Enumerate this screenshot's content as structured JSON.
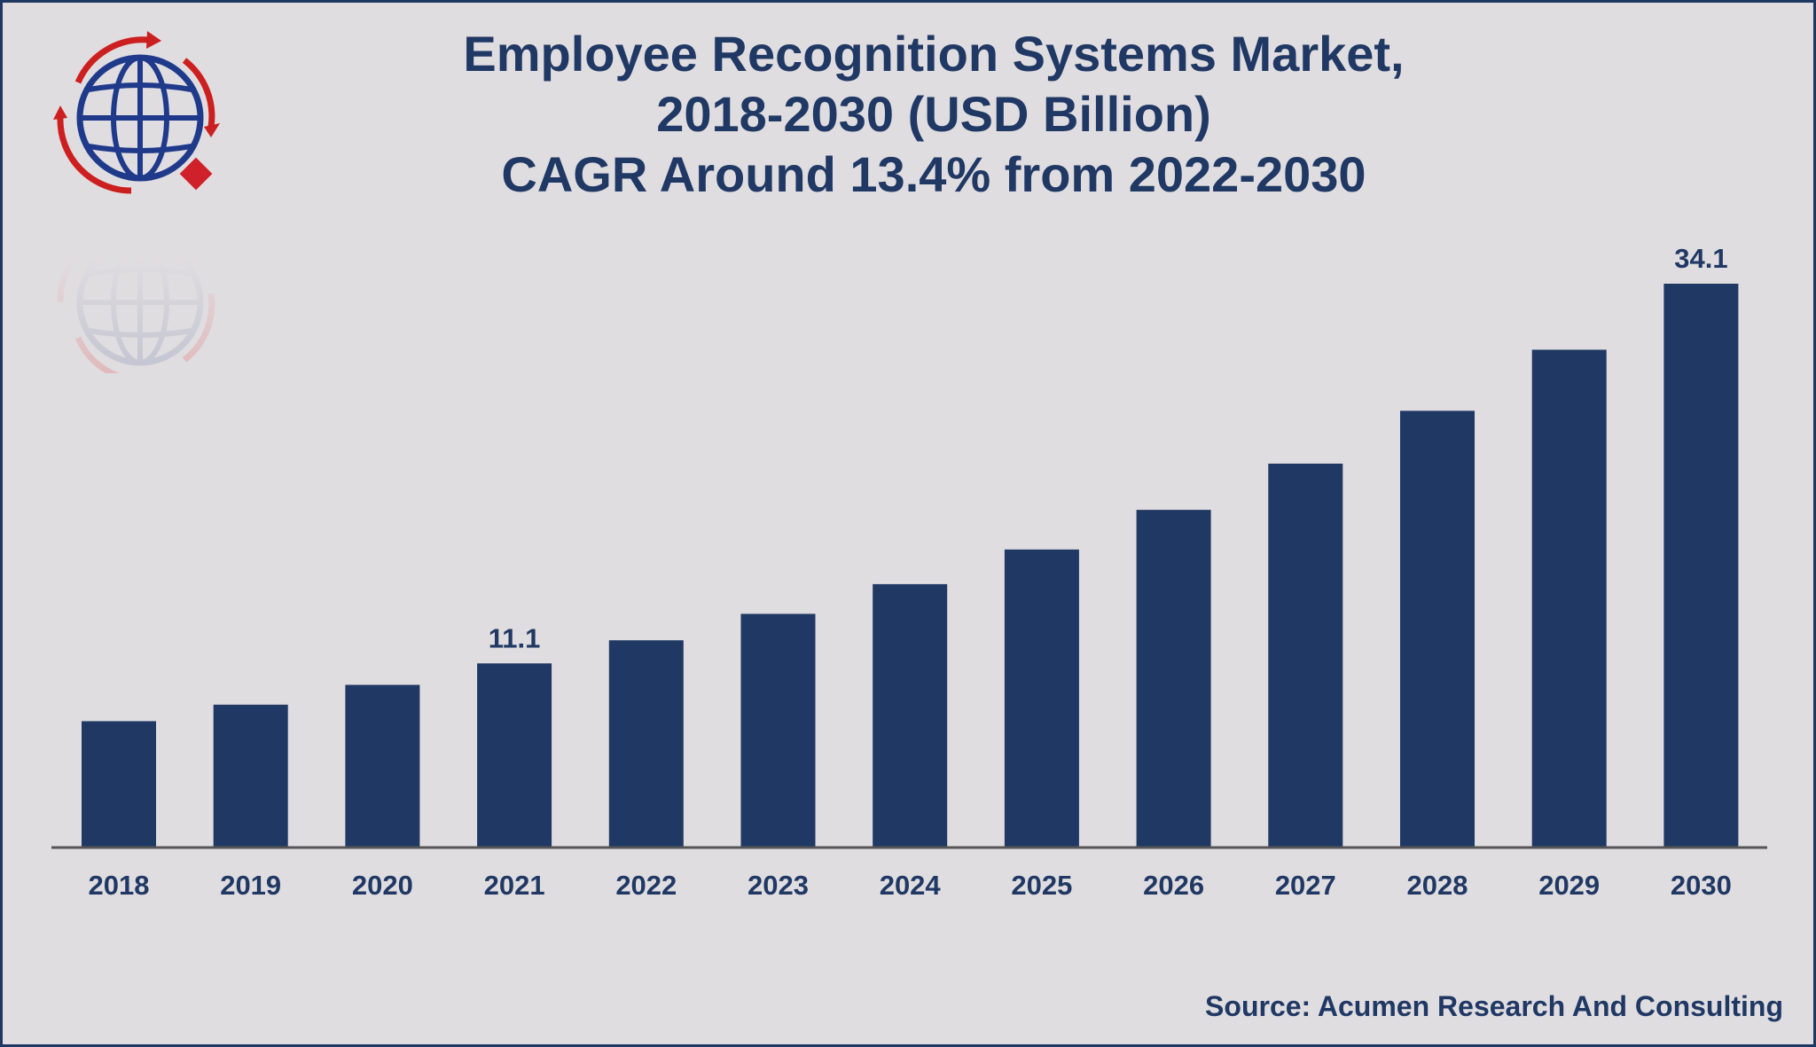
{
  "header": {
    "title_line1": "Employee Recognition Systems Market,",
    "title_line2": "2018-2030 (USD Billion)",
    "title_line3": "CAGR Around 13.4% from 2022-2030"
  },
  "logo": {
    "icon": "globe-logo-icon"
  },
  "footer": {
    "source": "Source: Acumen Research And Consulting"
  },
  "colors": {
    "background": "#e0dde0",
    "bar": "#203864",
    "accent": "#cc1f1f"
  },
  "chart_data": {
    "type": "bar",
    "categories": [
      "2018",
      "2019",
      "2020",
      "2021",
      "2022",
      "2023",
      "2024",
      "2025",
      "2026",
      "2027",
      "2028",
      "2029",
      "2030"
    ],
    "values": [
      7.6,
      8.6,
      9.8,
      11.1,
      12.5,
      14.1,
      15.9,
      18.0,
      20.4,
      23.2,
      26.4,
      30.1,
      34.1
    ],
    "data_labels": [
      "",
      "",
      "",
      "11.1",
      "",
      "",
      "",
      "",
      "",
      "",
      "",
      "",
      "34.1"
    ],
    "title": "Employee Recognition Systems Market, 2018-2030 (USD Billion) CAGR Around 13.4% from 2022-2030",
    "xlabel": "",
    "ylabel": "",
    "ylim": [
      0,
      36
    ],
    "grid": false,
    "legend": "none"
  }
}
